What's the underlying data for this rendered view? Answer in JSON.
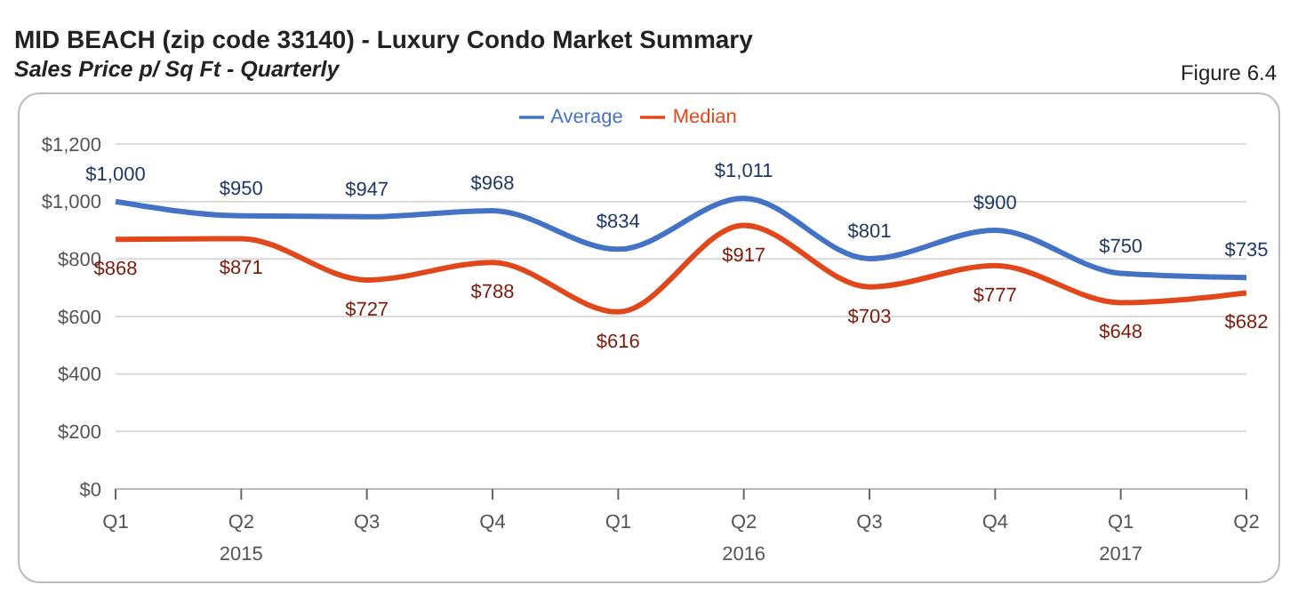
{
  "chart_data": {
    "type": "line",
    "title": "MID BEACH (zip code 33140) - Luxury Condo Market Summary",
    "subtitle": "Sales Price p/ Sq Ft - Quarterly",
    "annotations": [
      "Figure 6.4"
    ],
    "categories": [
      "Q1",
      "Q2\n2015",
      "Q3",
      "Q4",
      "Q1",
      "Q2\n2016",
      "Q3",
      "Q4",
      "Q1\n2017",
      "Q2"
    ],
    "series": [
      {
        "name": "Average",
        "color": "#4472c4",
        "values": [
          1000,
          950,
          947,
          968,
          834,
          1011,
          801,
          900,
          750,
          735
        ],
        "value_labels": [
          "$1,000",
          "$950",
          "$947",
          "$968",
          "$834",
          "$1,011",
          "$801",
          "$900",
          "$750",
          "$735"
        ]
      },
      {
        "name": "Median",
        "color": "#e0481c",
        "values": [
          868,
          871,
          727,
          788,
          616,
          917,
          703,
          777,
          648,
          682
        ],
        "value_labels": [
          "$868",
          "$871",
          "$727",
          "$788",
          "$616",
          "$917",
          "$703",
          "$777",
          "$648",
          "$682"
        ]
      }
    ],
    "ylim": [
      0,
      1200
    ],
    "yticks": [
      {
        "value": 0,
        "label": "$0"
      },
      {
        "value": 200,
        "label": "$200"
      },
      {
        "value": 400,
        "label": "$400"
      },
      {
        "value": 600,
        "label": "$600"
      },
      {
        "value": 800,
        "label": "$800"
      },
      {
        "value": 1000,
        "label": "$1,000"
      },
      {
        "value": 1200,
        "label": "$1,200"
      }
    ],
    "grid": "y",
    "legend": "top",
    "marker": "none",
    "line_style": "solid"
  }
}
